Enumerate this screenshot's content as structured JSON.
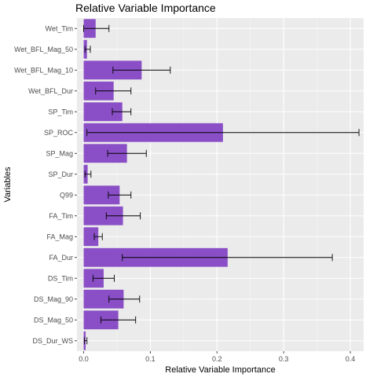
{
  "chart_data": {
    "type": "bar",
    "orientation": "horizontal",
    "title": "Relative Variable Importance",
    "xlabel": "Relative Variable Importance",
    "ylabel": "Variables",
    "xlim": [
      -0.01,
      0.42
    ],
    "x_ticks": [
      0.0,
      0.1,
      0.2,
      0.3,
      0.4
    ],
    "x_tick_labels": [
      "0.0",
      "0.1",
      "0.2",
      "0.3",
      "0.4"
    ],
    "grid": true,
    "legend": "none",
    "bar_color": "#8a4fc6",
    "panel_color": "#ebebeb",
    "categories": [
      "Wet_Tim",
      "Wet_BFL_Mag_50",
      "Wet_BFL_Mag_10",
      "Wet_BFL_Dur",
      "SP_Tim",
      "SP_ROC",
      "SP_Mag",
      "SP_Dur",
      "Q99",
      "FA_Tim",
      "FA_Mag",
      "FA_Dur",
      "DS_Tim",
      "DS_Mag_90",
      "DS_Mag_50",
      "DS_Dur_WS"
    ],
    "values": [
      0.018,
      0.005,
      0.087,
      0.045,
      0.058,
      0.209,
      0.065,
      0.006,
      0.054,
      0.059,
      0.022,
      0.216,
      0.03,
      0.06,
      0.052,
      0.003
    ],
    "error_low": [
      0.0,
      0.002,
      0.044,
      0.018,
      0.043,
      0.005,
      0.036,
      0.002,
      0.037,
      0.034,
      0.016,
      0.058,
      0.014,
      0.038,
      0.026,
      0.001
    ],
    "error_high": [
      0.038,
      0.01,
      0.13,
      0.071,
      0.071,
      0.413,
      0.094,
      0.011,
      0.071,
      0.085,
      0.028,
      0.373,
      0.046,
      0.084,
      0.078,
      0.005
    ]
  }
}
